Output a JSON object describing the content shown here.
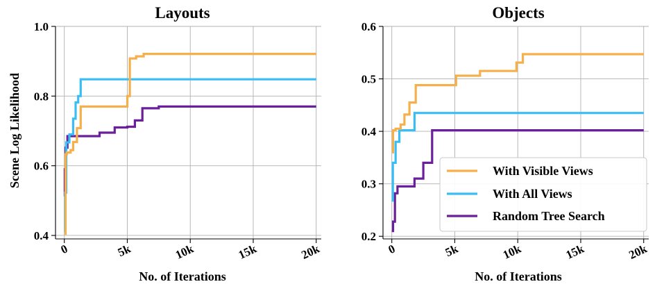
{
  "chart_data": [
    {
      "type": "line",
      "step": true,
      "title": "Layouts",
      "xlabel": "No. of Iterations",
      "ylabel": "Scene Log Likelihood",
      "xlim": [
        -700,
        20400
      ],
      "ylim": [
        0.39,
        1.0
      ],
      "xticks": [
        0,
        5000,
        10000,
        15000,
        20000
      ],
      "xtick_labels": [
        "0",
        "5k",
        "10k",
        "15k",
        "20k"
      ],
      "yticks": [
        0.4,
        0.6,
        0.8,
        1.0
      ],
      "ytick_labels": [
        "0.4",
        "0.6",
        "0.8",
        "1.0"
      ],
      "grid": true,
      "series": [
        {
          "name": "With Visible Views",
          "color": "#F5B04B",
          "x": [
            0,
            100,
            200,
            500,
            700,
            1000,
            1300,
            5000,
            5200,
            5700,
            6300,
            20000
          ],
          "y": [
            0.405,
            0.633,
            0.638,
            0.645,
            0.668,
            0.708,
            0.77,
            0.8,
            0.908,
            0.914,
            0.921,
            0.921
          ]
        },
        {
          "name": "With All Views",
          "color": "#38BEF5",
          "x": [
            0,
            60,
            150,
            400,
            700,
            900,
            1100,
            1300,
            20000
          ],
          "y": [
            0.41,
            0.523,
            0.667,
            0.69,
            0.735,
            0.782,
            0.8,
            0.848,
            0.848
          ]
        },
        {
          "name": "Random Tree Search",
          "color": "#6A1F9C",
          "x": [
            0,
            40,
            100,
            250,
            2800,
            4000,
            5000,
            5600,
            6200,
            7500,
            20000
          ],
          "y": [
            0.512,
            0.59,
            0.652,
            0.685,
            0.695,
            0.71,
            0.712,
            0.73,
            0.765,
            0.77,
            0.77
          ]
        }
      ]
    },
    {
      "type": "line",
      "step": true,
      "title": "Objects",
      "xlabel": "No. of Iterations",
      "ylabel": "",
      "xlim": [
        -700,
        20400
      ],
      "ylim": [
        0.195,
        0.6
      ],
      "xticks": [
        0,
        5000,
        10000,
        15000,
        20000
      ],
      "xtick_labels": [
        "0",
        "5k",
        "10k",
        "15k",
        "20k"
      ],
      "yticks": [
        0.2,
        0.3,
        0.4,
        0.5,
        0.6
      ],
      "ytick_labels": [
        "0.2",
        "0.3",
        "0.4",
        "0.5",
        "0.6"
      ],
      "grid": true,
      "series": [
        {
          "name": "With Visible Views",
          "color": "#F5B04B",
          "x": [
            0,
            100,
            300,
            700,
            1000,
            1400,
            1900,
            5100,
            7000,
            9900,
            10400,
            20000
          ],
          "y": [
            0.36,
            0.402,
            0.405,
            0.413,
            0.432,
            0.455,
            0.488,
            0.506,
            0.515,
            0.531,
            0.547,
            0.547
          ]
        },
        {
          "name": "With All Views",
          "color": "#38BEF5",
          "x": [
            0,
            80,
            300,
            600,
            1800,
            20000
          ],
          "y": [
            0.268,
            0.34,
            0.38,
            0.402,
            0.435,
            0.435
          ]
        },
        {
          "name": "Random Tree Search",
          "color": "#6A1F9C",
          "x": [
            0,
            100,
            250,
            450,
            1800,
            2500,
            3200,
            20000
          ],
          "y": [
            0.21,
            0.228,
            0.282,
            0.295,
            0.31,
            0.34,
            0.402,
            0.402
          ]
        }
      ],
      "legend": {
        "position": "lower-right",
        "entries": [
          "With Visible Views",
          "With All Views",
          "Random Tree Search"
        ]
      }
    }
  ]
}
